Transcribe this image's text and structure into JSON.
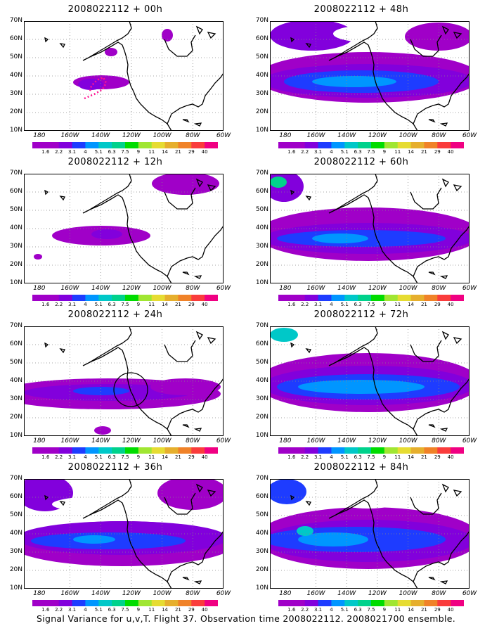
{
  "caption": "Signal Variance for u,v,T. Flight 37. Observation time 2008022112. 2008021700 ensemble.",
  "colorbar": {
    "labels": [
      "1.6",
      "2.2",
      "3.1",
      "4",
      "5.1",
      "6.3",
      "7.5",
      "9",
      "11",
      "14",
      "21",
      "29",
      "40"
    ],
    "colors": [
      "#a000c8",
      "#8200dc",
      "#1e3cff",
      "#0096ff",
      "#00c8c8",
      "#00d28c",
      "#00dc00",
      "#a0e632",
      "#e6dc32",
      "#e6af2d",
      "#f08228",
      "#fa3c3c",
      "#f00082"
    ]
  },
  "chart_data": [
    {
      "type": "heatmap",
      "title": "2008022112 + 00h",
      "lead_hours": 0,
      "x_ticks": [
        "180",
        "160W",
        "140W",
        "120W",
        "100W",
        "80W",
        "60W"
      ],
      "y_ticks": [
        "70N",
        "60N",
        "50N",
        "40N",
        "30N",
        "20N",
        "10N"
      ],
      "xlim": [
        -190,
        -60
      ],
      "ylim": [
        10,
        70
      ]
    },
    {
      "type": "heatmap",
      "title": "2008022112 + 48h",
      "lead_hours": 48,
      "x_ticks": [
        "180",
        "160W",
        "140W",
        "120W",
        "100W",
        "80W",
        "60W"
      ],
      "y_ticks": [
        "70N",
        "60N",
        "50N",
        "40N",
        "30N",
        "20N",
        "10N"
      ],
      "xlim": [
        -190,
        -60
      ],
      "ylim": [
        10,
        70
      ]
    },
    {
      "type": "heatmap",
      "title": "2008022112 + 12h",
      "lead_hours": 12,
      "x_ticks": [
        "180",
        "160W",
        "140W",
        "120W",
        "100W",
        "80W",
        "60W"
      ],
      "y_ticks": [
        "70N",
        "60N",
        "50N",
        "40N",
        "30N",
        "20N",
        "10N"
      ],
      "xlim": [
        -190,
        -60
      ],
      "ylim": [
        10,
        70
      ]
    },
    {
      "type": "heatmap",
      "title": "2008022112 + 60h",
      "lead_hours": 60,
      "x_ticks": [
        "180",
        "160W",
        "140W",
        "120W",
        "100W",
        "80W",
        "60W"
      ],
      "y_ticks": [
        "70N",
        "60N",
        "50N",
        "40N",
        "30N",
        "20N",
        "10N"
      ],
      "xlim": [
        -190,
        -60
      ],
      "ylim": [
        10,
        70
      ]
    },
    {
      "type": "heatmap",
      "title": "2008022112 + 24h",
      "lead_hours": 24,
      "x_ticks": [
        "180",
        "160W",
        "140W",
        "120W",
        "100W",
        "80W",
        "60W"
      ],
      "y_ticks": [
        "70N",
        "60N",
        "50N",
        "40N",
        "30N",
        "20N",
        "10N"
      ],
      "xlim": [
        -190,
        -60
      ],
      "ylim": [
        10,
        70
      ]
    },
    {
      "type": "heatmap",
      "title": "2008022112 + 72h",
      "lead_hours": 72,
      "x_ticks": [
        "180",
        "160W",
        "140W",
        "120W",
        "100W",
        "80W",
        "60W"
      ],
      "y_ticks": [
        "70N",
        "60N",
        "50N",
        "40N",
        "30N",
        "20N",
        "10N"
      ],
      "xlim": [
        -190,
        -60
      ],
      "ylim": [
        10,
        70
      ]
    },
    {
      "type": "heatmap",
      "title": "2008022112 + 36h",
      "lead_hours": 36,
      "x_ticks": [
        "180",
        "160W",
        "140W",
        "120W",
        "100W",
        "80W",
        "60W"
      ],
      "y_ticks": [
        "70N",
        "60N",
        "50N",
        "40N",
        "30N",
        "20N",
        "10N"
      ],
      "xlim": [
        -190,
        -60
      ],
      "ylim": [
        10,
        70
      ]
    },
    {
      "type": "heatmap",
      "title": "2008022112 + 84h",
      "lead_hours": 84,
      "x_ticks": [
        "180",
        "160W",
        "140W",
        "120W",
        "100W",
        "80W",
        "60W"
      ],
      "y_ticks": [
        "70N",
        "60N",
        "50N",
        "40N",
        "30N",
        "20N",
        "10N"
      ],
      "xlim": [
        -190,
        -60
      ],
      "ylim": [
        10,
        70
      ]
    }
  ]
}
